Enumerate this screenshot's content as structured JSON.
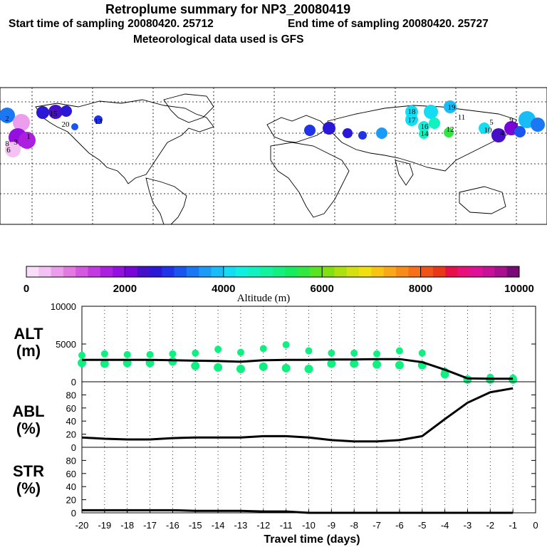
{
  "header": {
    "title": "Retroplume summary for NP3_20080419",
    "start_label": "Start time of sampling 20080420. 25712",
    "end_label": "End time of sampling 20080420. 25727",
    "met_label": "Meteorological data used is GFS"
  },
  "colorbar": {
    "ticks": [
      "0",
      "2000",
      "4000",
      "6000",
      "8000",
      "10000"
    ],
    "label": "Altitude (m)",
    "colors": [
      "#f9def9",
      "#f3c2f3",
      "#ec9eec",
      "#e27ae2",
      "#d558e0",
      "#c43ae0",
      "#ad1fe0",
      "#9410e0",
      "#7a05d8",
      "#4510c8",
      "#2a18d6",
      "#1f33e8",
      "#1a55f0",
      "#1a78f5",
      "#1a9bf8",
      "#18bdf8",
      "#14dcf2",
      "#10f0e0",
      "#10f2c0",
      "#12f2a0",
      "#14f080",
      "#16ec60",
      "#30e840",
      "#58e420",
      "#82e012",
      "#aee010",
      "#d4e010",
      "#f0e010",
      "#f8c410",
      "#f8a818",
      "#f88c18",
      "#f87018",
      "#f05418",
      "#e83818",
      "#e81048",
      "#e8107a",
      "#e01098",
      "#c81098",
      "#a81090",
      "#7a0a78"
    ]
  },
  "map": {
    "labels": [
      "15",
      "20",
      "13",
      "18",
      "17",
      "16",
      "14",
      "19",
      "12",
      "11",
      "10",
      "5",
      "4",
      "9",
      "7",
      "8",
      "6",
      "3",
      "2",
      "1"
    ]
  },
  "chart_data": [
    {
      "type": "line",
      "panel": "ALT",
      "ylabel": "ALT\n(m)",
      "ylim": [
        0,
        10000
      ],
      "yticks": [
        0,
        5000,
        10000
      ],
      "x": [
        -20,
        -19,
        -18,
        -17,
        -16,
        -15,
        -14,
        -13,
        -12,
        -11,
        -10,
        -9,
        -8,
        -7,
        -6,
        -5,
        -4,
        -3,
        -2,
        -1
      ],
      "values": [
        2900,
        2900,
        2900,
        2900,
        2850,
        2800,
        2750,
        2650,
        2850,
        2900,
        2900,
        2950,
        2950,
        3000,
        3000,
        2600,
        1600,
        450,
        400,
        400
      ],
      "scatter": {
        "color": "#10f080",
        "upper": [
          3500,
          3700,
          3600,
          3600,
          3700,
          3800,
          4300,
          3900,
          4400,
          4900,
          4100,
          3800,
          3800,
          3700,
          4100,
          3800,
          1400,
          400,
          600,
          500
        ],
        "lower": [
          2500,
          2400,
          2500,
          2500,
          2700,
          2100,
          1900,
          1700,
          2000,
          1800,
          1700,
          2400,
          2400,
          2300,
          2200,
          2200,
          1000,
          300,
          300,
          300
        ]
      }
    },
    {
      "type": "line",
      "panel": "ABL",
      "ylabel": "ABL\n(%)",
      "ylim": [
        0,
        100
      ],
      "yticks": [
        0,
        20,
        40,
        60,
        80
      ],
      "x": [
        -20,
        -19,
        -18,
        -17,
        -16,
        -15,
        -14,
        -13,
        -12,
        -11,
        -10,
        -9,
        -8,
        -7,
        -6,
        -5,
        -4,
        -3,
        -2,
        -1
      ],
      "values": [
        15,
        13,
        12,
        12,
        14,
        15,
        15,
        15,
        17,
        17,
        15,
        11,
        9,
        9,
        11,
        17,
        43,
        68,
        84,
        90
      ]
    },
    {
      "type": "line",
      "panel": "STR",
      "ylabel": "STR\n(%)",
      "ylim": [
        0,
        100
      ],
      "yticks": [
        0,
        20,
        40,
        60,
        80
      ],
      "x": [
        -20,
        -19,
        -18,
        -17,
        -16,
        -15,
        -14,
        -13,
        -12,
        -11,
        -10,
        -9,
        -8,
        -7,
        -6,
        -5,
        -4,
        -3,
        -2,
        -1
      ],
      "values": [
        4,
        4,
        4,
        4,
        4,
        3,
        3,
        3,
        2,
        2,
        0,
        0,
        0,
        0,
        0,
        0,
        0,
        0,
        0,
        0
      ],
      "xlabel": "Travel time (days)",
      "xticks": [
        -20,
        -19,
        -18,
        -17,
        -16,
        -15,
        -14,
        -13,
        -12,
        -11,
        -10,
        -9,
        -8,
        -7,
        -6,
        -5,
        -4,
        -3,
        -2,
        -1,
        0
      ]
    }
  ]
}
